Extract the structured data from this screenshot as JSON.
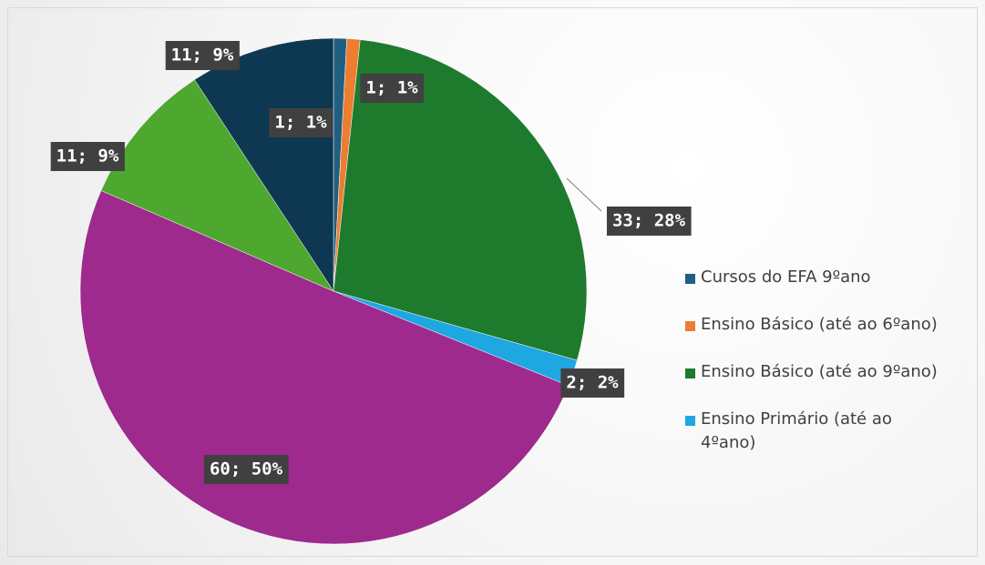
{
  "chart_data": {
    "type": "pie",
    "categories": [
      "Cursos do EFA 9ºano",
      "Ensino Básico (até ao 6ºano)",
      "Ensino Básico (até ao 9ºano)",
      "Ensino Primário (até ao 4ºano)",
      null,
      null,
      null
    ],
    "values": [
      1,
      1,
      33,
      2,
      60,
      11,
      11
    ],
    "value_labels": [
      "1; 1%",
      "1; 1%",
      "33; 28%",
      "2; 2%",
      "60; 50%",
      "11; 9%",
      "11; 9%"
    ],
    "colors": [
      "#1f5f80",
      "#ed7d31",
      "#1e7b2e",
      "#1ea7e0",
      "#9e2a8e",
      "#4ea72e",
      "#0e3752"
    ]
  }
}
